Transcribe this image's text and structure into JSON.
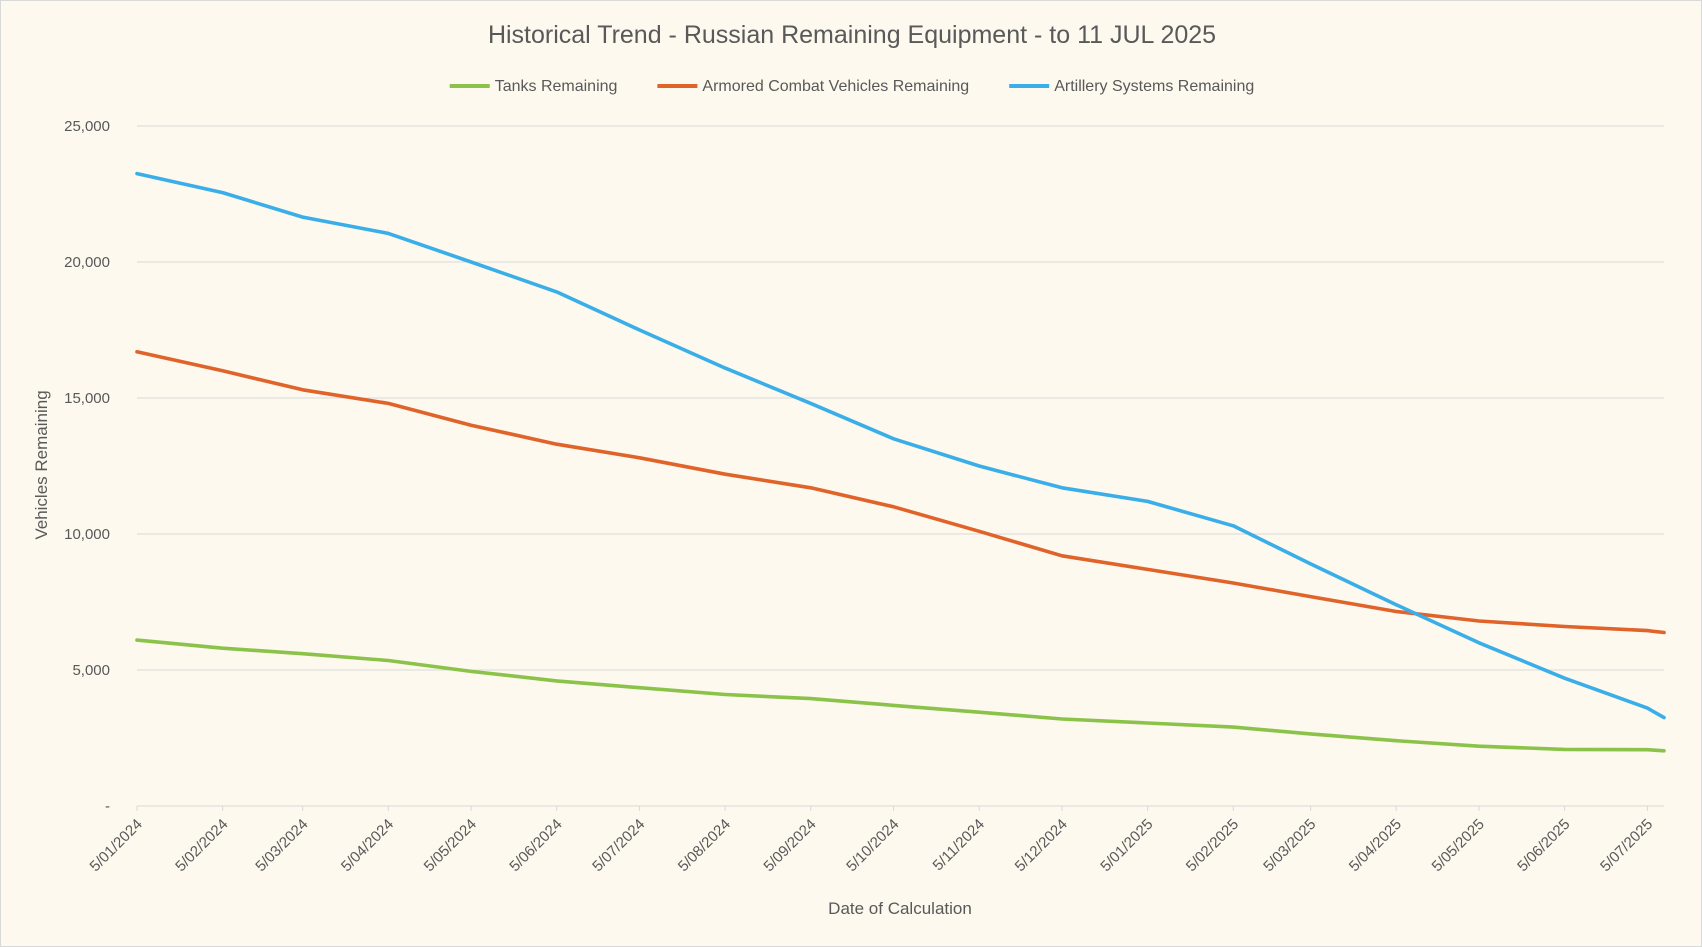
{
  "chart_data": {
    "type": "line",
    "title": "Historical Trend - Russian Remaining Equipment - to 11 JUL 2025",
    "xlabel": "Date of Calculation",
    "ylabel": "Vehicles Remaining",
    "ylim": [
      0,
      25000
    ],
    "y_ticks": [
      0,
      5000,
      10000,
      15000,
      20000,
      25000
    ],
    "y_tick_labels": [
      "-",
      "5,000",
      "10,000",
      "15,000",
      "20,000",
      "25,000"
    ],
    "x_tick_labels": [
      "5/01/2024",
      "5/02/2024",
      "5/03/2024",
      "5/04/2024",
      "5/05/2024",
      "5/06/2024",
      "5/07/2024",
      "5/08/2024",
      "5/09/2024",
      "5/10/2024",
      "5/11/2024",
      "5/12/2024",
      "5/01/2025",
      "5/02/2025",
      "5/03/2025",
      "5/04/2025",
      "5/05/2025",
      "5/06/2025",
      "5/07/2025"
    ],
    "x_range": [
      "5/01/2024",
      "11/07/2025"
    ],
    "gridlines": "horizontal",
    "legend_position": "top",
    "series": [
      {
        "name": "Tanks Remaining",
        "color": "#8bc34a",
        "x": [
          "5/01/2024",
          "5/02/2024",
          "5/03/2024",
          "5/04/2024",
          "5/05/2024",
          "5/06/2024",
          "5/07/2024",
          "5/08/2024",
          "5/09/2024",
          "5/10/2024",
          "5/11/2024",
          "5/12/2024",
          "5/01/2025",
          "5/02/2025",
          "5/03/2025",
          "5/04/2025",
          "5/05/2025",
          "5/06/2025",
          "5/07/2025",
          "11/07/2025"
        ],
        "values": [
          6100,
          5800,
          5600,
          5350,
          4950,
          4600,
          4350,
          4100,
          3950,
          3700,
          3450,
          3200,
          3050,
          2900,
          2650,
          2400,
          2200,
          2080,
          2070,
          2030
        ]
      },
      {
        "name": "Armored Combat Vehicles Remaining",
        "color": "#e0632a",
        "x": [
          "5/01/2024",
          "5/02/2024",
          "5/03/2024",
          "5/04/2024",
          "5/05/2024",
          "5/06/2024",
          "5/07/2024",
          "5/08/2024",
          "5/09/2024",
          "5/10/2024",
          "5/11/2024",
          "5/12/2024",
          "5/01/2025",
          "5/02/2025",
          "5/03/2025",
          "5/04/2025",
          "5/05/2025",
          "5/06/2025",
          "5/07/2025",
          "11/07/2025"
        ],
        "values": [
          16700,
          16000,
          15300,
          14800,
          14000,
          13300,
          12800,
          12200,
          11700,
          11000,
          10100,
          9200,
          8700,
          8200,
          7700,
          7150,
          6800,
          6600,
          6450,
          6380
        ]
      },
      {
        "name": "Artillery Systems Remaining",
        "color": "#3aaee8",
        "x": [
          "5/01/2024",
          "5/02/2024",
          "5/03/2024",
          "5/04/2024",
          "5/05/2024",
          "5/06/2024",
          "5/07/2024",
          "5/08/2024",
          "5/09/2024",
          "5/10/2024",
          "5/11/2024",
          "5/12/2024",
          "5/01/2025",
          "5/02/2025",
          "5/03/2025",
          "5/04/2025",
          "5/05/2025",
          "5/06/2025",
          "5/07/2025",
          "11/07/2025"
        ],
        "values": [
          23250,
          22550,
          21650,
          21050,
          20000,
          18900,
          17500,
          16100,
          14800,
          13500,
          12500,
          11700,
          11200,
          10300,
          8900,
          7400,
          6000,
          4700,
          3600,
          3250
        ]
      }
    ]
  }
}
